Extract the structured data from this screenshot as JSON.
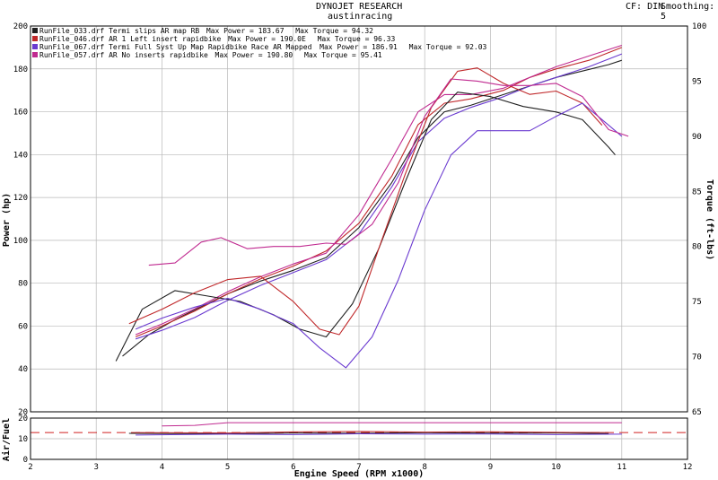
{
  "header": {
    "title": "DYNOJET RESEARCH",
    "subtitle": "austinracing",
    "cf_label": "CF: DIN",
    "smoothing_label": "Smoothing: 5"
  },
  "chart_data": [
    {
      "type": "line",
      "xlabel": "Engine Speed (RPM x1000)",
      "ylabel": "Power (hp)",
      "y2label": "Torque (ft-lbs)",
      "xlim": [
        2,
        12
      ],
      "ylim": [
        20,
        200
      ],
      "y2lim": [
        65,
        100
      ],
      "x_ticks": [
        2,
        3,
        4,
        5,
        6,
        7,
        8,
        9,
        10,
        11,
        12
      ],
      "y_ticks": [
        20,
        40,
        60,
        80,
        100,
        120,
        140,
        160,
        180,
        200
      ],
      "y2_ticks": [
        65,
        70,
        75,
        80,
        85,
        90,
        95,
        100
      ],
      "grid": true,
      "legend_position": "top-left",
      "legend": [
        {
          "run": "RunFile_033.drf Termi slips AR map RB",
          "power_text": "Max Power = 183.67",
          "torque_text": "Max Torque = 94.32",
          "color": "#202020"
        },
        {
          "run": "RunFile_046.drf AR 1 Left insert rapidbike",
          "power_text": "Max Power = 190.0E",
          "torque_text": "Max Torque = 96.33",
          "color": "#c0282a"
        },
        {
          "run": "RunFile_067.drf Termi Full Syst Up Map Rapidbike Race AR Mapped",
          "power_text": "Max Power = 186.91",
          "torque_text": "Max Torque = 92.03",
          "color": "#6a3ad0"
        },
        {
          "run": "RunFile_057.drf AR No inserts rapidbike",
          "power_text": "Max Power = 190.80",
          "torque_text": "Max Torque = 95.41",
          "color": "#c02a90"
        }
      ],
      "series": [
        {
          "kind": "power",
          "color": "#202020",
          "x": [
            3.4,
            3.8,
            4.2,
            4.6,
            5.0,
            5.5,
            6.0,
            6.5,
            7.0,
            7.5,
            7.9,
            8.3,
            8.7,
            9.2,
            9.6,
            10.0,
            10.4,
            10.8,
            11.0
          ],
          "y": [
            46,
            56,
            63,
            69,
            75,
            81,
            86,
            92,
            106,
            127,
            148,
            160,
            163,
            168,
            172,
            176,
            179,
            182,
            184
          ]
        },
        {
          "kind": "power",
          "color": "#c0282a",
          "x": [
            3.6,
            4.0,
            4.5,
            5.0,
            5.5,
            6.0,
            6.5,
            7.0,
            7.5,
            7.9,
            8.3,
            8.7,
            9.2,
            9.6,
            10.0,
            10.5,
            11.0
          ],
          "y": [
            55,
            60,
            67,
            75,
            82,
            88,
            95,
            108,
            130,
            154,
            164,
            166,
            170,
            176,
            180,
            184,
            190
          ]
        },
        {
          "kind": "power",
          "color": "#6a3ad0",
          "x": [
            3.6,
            4.0,
            4.5,
            5.0,
            5.5,
            6.0,
            6.5,
            7.0,
            7.5,
            7.9,
            8.3,
            8.7,
            9.2,
            9.6,
            10.0,
            10.5,
            11.0
          ],
          "y": [
            54,
            58,
            64,
            72,
            79,
            85,
            91,
            103,
            125,
            146,
            157,
            162,
            167,
            172,
            176,
            181,
            187
          ]
        },
        {
          "kind": "power",
          "color": "#c02a90",
          "x": [
            3.6,
            4.0,
            4.5,
            5.0,
            5.5,
            6.0,
            6.5,
            7.0,
            7.5,
            7.9,
            8.3,
            8.7,
            9.2,
            9.6,
            10.0,
            10.5,
            11.0
          ],
          "y": [
            56,
            61,
            68,
            76,
            83,
            89,
            94,
            112,
            138,
            160,
            168,
            168,
            171,
            176,
            181,
            186,
            191
          ]
        },
        {
          "kind": "torque",
          "color": "#202020",
          "x": [
            3.3,
            3.7,
            4.2,
            4.7,
            5.2,
            5.7,
            6.1,
            6.5,
            6.9,
            7.3,
            7.7,
            8.1,
            8.5,
            9.0,
            9.5,
            10.0,
            10.4,
            10.8,
            10.9
          ],
          "y": [
            69.6,
            74.3,
            76.0,
            75.5,
            75.0,
            73.8,
            72.5,
            71.8,
            74.8,
            79.8,
            85.8,
            91.5,
            94.0,
            93.6,
            92.7,
            92.2,
            91.5,
            89.0,
            88.3
          ]
        },
        {
          "kind": "torque",
          "color": "#c0282a",
          "x": [
            3.5,
            4.0,
            4.5,
            5.0,
            5.5,
            6.0,
            6.4,
            6.7,
            7.0,
            7.3,
            7.7,
            8.1,
            8.5,
            8.8,
            9.2,
            9.6,
            10.0,
            10.4,
            10.7
          ],
          "y": [
            73.0,
            74.3,
            75.8,
            77.0,
            77.3,
            75.0,
            72.5,
            72.0,
            74.6,
            79.8,
            86.5,
            92.6,
            95.9,
            96.2,
            94.8,
            93.8,
            94.1,
            93.0,
            91.0
          ]
        },
        {
          "kind": "torque",
          "color": "#6a3ad0",
          "x": [
            3.6,
            4.0,
            4.5,
            5.0,
            5.5,
            6.0,
            6.4,
            6.8,
            7.2,
            7.6,
            8.0,
            8.4,
            8.8,
            9.2,
            9.6,
            10.0,
            10.4,
            10.8,
            11.0
          ],
          "y": [
            72.5,
            73.5,
            74.5,
            75.3,
            74.3,
            73.0,
            70.8,
            69.0,
            71.8,
            77.0,
            83.3,
            88.3,
            90.5,
            90.5,
            90.5,
            91.8,
            93.0,
            91.0,
            90.0
          ]
        },
        {
          "kind": "torque",
          "color": "#c02a90",
          "x": [
            3.8,
            4.2,
            4.6,
            4.9,
            5.3,
            5.7,
            6.1,
            6.5,
            6.8,
            7.2,
            7.6,
            8.0,
            8.4,
            8.8,
            9.2,
            9.6,
            10.0,
            10.4,
            10.8,
            11.1
          ],
          "y": [
            78.3,
            78.5,
            80.4,
            80.8,
            79.8,
            80.0,
            80.0,
            80.3,
            80.2,
            82.0,
            85.8,
            91.8,
            95.2,
            95.0,
            94.6,
            94.6,
            94.8,
            93.6,
            90.6,
            90.0
          ]
        }
      ]
    },
    {
      "type": "line",
      "ylabel": "Air/Fuel",
      "xlim": [
        2,
        12
      ],
      "ylim": [
        0,
        20
      ],
      "y_ticks": [
        0,
        10,
        20
      ],
      "grid": true,
      "reference_line": 13,
      "series": [
        {
          "color": "#202020",
          "x": [
            3.5,
            5,
            6,
            7,
            8,
            9,
            10,
            10.8
          ],
          "y": [
            12.6,
            12.4,
            12.8,
            12.6,
            12.9,
            12.7,
            12.8,
            12.5
          ]
        },
        {
          "color": "#c0282a",
          "x": [
            3.6,
            5,
            6,
            7,
            8,
            9,
            10,
            10.8
          ],
          "y": [
            13.0,
            12.8,
            13.3,
            13.5,
            13.2,
            13.4,
            13.1,
            13.0
          ]
        },
        {
          "color": "#6a3ad0",
          "x": [
            3.6,
            5,
            6,
            7,
            8,
            9,
            10,
            11.0
          ],
          "y": [
            11.8,
            12.2,
            12.0,
            12.4,
            12.2,
            12.3,
            12.0,
            12.2
          ]
        },
        {
          "color": "#c02a90",
          "x": [
            4.0,
            4.5,
            5.0,
            6,
            7,
            8,
            9,
            10,
            11.0
          ],
          "y": [
            16.2,
            16.5,
            17.8,
            17.8,
            17.8,
            17.8,
            17.8,
            17.8,
            17.8
          ]
        }
      ]
    }
  ]
}
